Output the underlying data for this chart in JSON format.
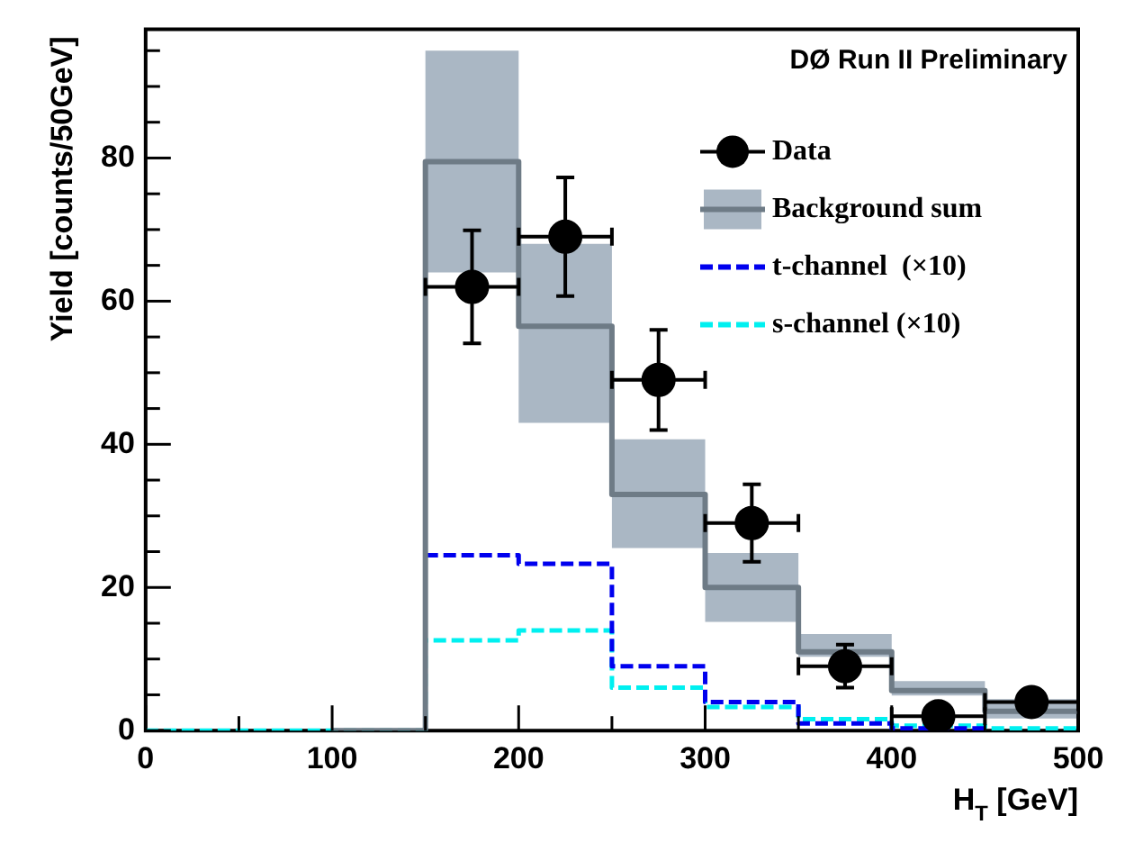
{
  "chart_data": {
    "type": "step",
    "xlabel": "H$_{T}$ [GeV]",
    "ylabel": "Yield [counts/50GeV]",
    "annotations": [
      "DØ Run II Preliminary"
    ],
    "x": [
      0,
      50,
      100,
      150,
      200,
      250,
      300,
      350,
      400,
      450,
      500
    ],
    "xlim": [
      0,
      500
    ],
    "ylim": [
      0,
      98
    ],
    "xticks": [
      0,
      {
        "value": 50,
        "label": null
      },
      100,
      {
        "value": 150,
        "label": null
      },
      200,
      {
        "value": 250,
        "label": null
      },
      300,
      {
        "value": 350,
        "label": null
      },
      400,
      {
        "value": 450,
        "label": null
      },
      500
    ],
    "yticks": [
      0,
      {
        "value": 5,
        "label": null
      },
      {
        "value": 10,
        "label": null
      },
      {
        "value": 15,
        "label": null
      },
      20,
      {
        "value": 25,
        "label": null
      },
      {
        "value": 30,
        "label": null
      },
      {
        "value": 35,
        "label": null
      },
      40,
      {
        "value": 45,
        "label": null
      },
      {
        "value": 50,
        "label": null
      },
      {
        "value": 55,
        "label": null
      },
      60,
      {
        "value": 65,
        "label": null
      },
      {
        "value": 70,
        "label": null
      },
      {
        "value": 75,
        "label": null
      },
      80,
      {
        "value": 85,
        "label": null
      },
      {
        "value": 90,
        "label": null
      },
      {
        "value": 95,
        "label": null
      }
    ],
    "legend": "top right",
    "series": [
      {
        "name": "Background sum",
        "color": "#6e7b86",
        "values": [
          null,
          null,
          0,
          79.5,
          56.5,
          33,
          20,
          11,
          5.6,
          2.7,
          2.7
        ],
        "lower": [
          null,
          null,
          null,
          64,
          43,
          25.5,
          15.2,
          10.3,
          4.9,
          1.7,
          1.7
        ],
        "upper": [
          null,
          null,
          null,
          95,
          68,
          40.7,
          24.8,
          13.5,
          6.9,
          4.4,
          4.4
        ]
      },
      {
        "name": "t-channel  (×10)",
        "color": "#0000ee",
        "line_style": "dashed",
        "values": [
          null,
          null,
          null,
          24.5,
          23.3,
          9,
          4,
          1,
          0.3,
          0.3,
          null
        ]
      },
      {
        "name": "s-channel (×10)",
        "color": "#00f0f0",
        "line_style": "dashed",
        "values": [
          0,
          0,
          0,
          12.6,
          14,
          6,
          3.3,
          1.6,
          0.7,
          0.3,
          0.3
        ]
      },
      {
        "name": "Data",
        "type": "scatter",
        "color": "#000000",
        "marker": "circle",
        "x": [
          175,
          225,
          275,
          325,
          375,
          425,
          475
        ],
        "values": [
          62,
          69,
          49,
          29,
          9,
          2,
          4
        ],
        "errors": [
          7.9,
          8.3,
          7,
          5.4,
          3,
          null,
          null
        ],
        "xerrors": [
          25,
          25,
          25,
          25,
          25,
          25,
          25
        ]
      }
    ]
  }
}
